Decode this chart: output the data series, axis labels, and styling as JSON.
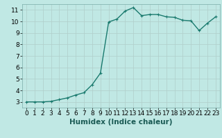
{
  "x": [
    0,
    1,
    2,
    3,
    4,
    5,
    6,
    7,
    8,
    9,
    10,
    11,
    12,
    13,
    14,
    15,
    16,
    17,
    18,
    19,
    20,
    21,
    22,
    23
  ],
  "y": [
    3.0,
    3.0,
    3.0,
    3.05,
    3.2,
    3.35,
    3.6,
    3.8,
    4.5,
    5.5,
    9.95,
    10.2,
    10.9,
    11.2,
    10.5,
    10.6,
    10.6,
    10.4,
    10.35,
    10.1,
    10.05,
    9.2,
    9.85,
    10.4
  ],
  "line_color": "#1a7a6e",
  "marker_color": "#1a7a6e",
  "bg_color": "#c0e8e4",
  "grid_color": "#b0ceca",
  "xlabel": "Humidex (Indice chaleur)",
  "xlabel_fontsize": 7.5,
  "xlim": [
    -0.5,
    23.5
  ],
  "ylim": [
    2.5,
    11.5
  ],
  "xticks": [
    0,
    1,
    2,
    3,
    4,
    5,
    6,
    7,
    8,
    9,
    10,
    11,
    12,
    13,
    14,
    15,
    16,
    17,
    18,
    19,
    20,
    21,
    22,
    23
  ],
  "yticks": [
    3,
    4,
    5,
    6,
    7,
    8,
    9,
    10,
    11
  ],
  "tick_fontsize": 6.5,
  "line_width": 1.0,
  "marker_size": 2.5,
  "marker": "+"
}
